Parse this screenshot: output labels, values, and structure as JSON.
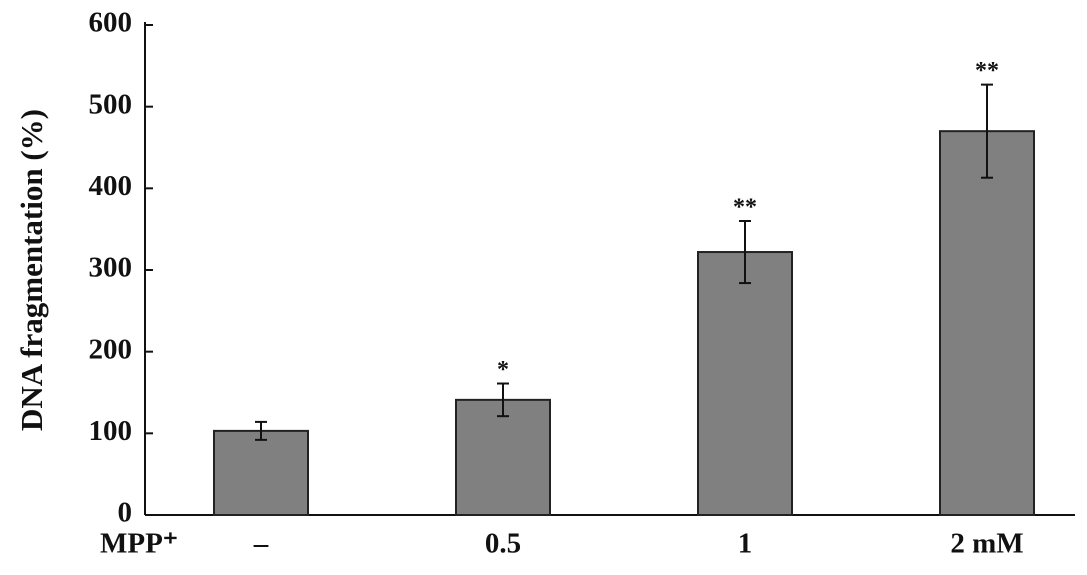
{
  "chart_data": {
    "type": "bar",
    "ylabel": "DNA fragmentation (%)",
    "xlabel": "MPP⁺",
    "categories": [
      "–",
      "0.5",
      "1",
      "2 mM"
    ],
    "values": [
      103,
      141,
      322,
      470
    ],
    "errors": [
      11,
      20,
      38,
      57
    ],
    "annotations": [
      null,
      "*",
      "**",
      "**"
    ],
    "color": "#808080",
    "ylim": [
      0,
      600
    ],
    "yticks": [
      0,
      100,
      200,
      300,
      400,
      500,
      600
    ]
  }
}
